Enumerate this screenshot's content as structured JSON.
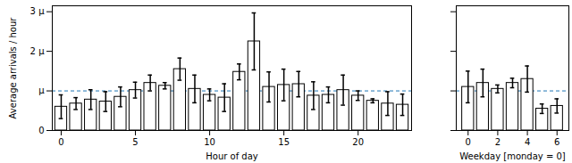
{
  "chart_data": [
    {
      "type": "bar",
      "x": [
        0,
        1,
        2,
        3,
        4,
        5,
        6,
        7,
        8,
        9,
        10,
        11,
        12,
        13,
        14,
        15,
        16,
        17,
        18,
        19,
        20,
        21,
        22,
        23
      ],
      "values": [
        0.6,
        0.68,
        0.78,
        0.73,
        0.85,
        1.02,
        1.2,
        1.13,
        1.55,
        1.05,
        0.9,
        0.83,
        1.48,
        2.25,
        1.1,
        1.15,
        1.17,
        0.88,
        0.9,
        1.02,
        0.88,
        0.75,
        0.68,
        0.65
      ],
      "errors": [
        0.3,
        0.15,
        0.25,
        0.25,
        0.25,
        0.2,
        0.2,
        0.08,
        0.28,
        0.35,
        0.15,
        0.35,
        0.2,
        0.72,
        0.38,
        0.4,
        0.32,
        0.35,
        0.2,
        0.38,
        0.12,
        0.05,
        0.3,
        0.27
      ],
      "color": "#ffffff",
      "x_label": "Hour of day",
      "y_label": "Average arrivals / hour",
      "xlim": [
        -0.6,
        23.6
      ],
      "xticks": [
        0,
        5,
        10,
        15,
        20
      ],
      "ylim": [
        0,
        3.15
      ],
      "yticks": [
        0,
        {
          "value": 1,
          "label": "μ"
        },
        {
          "value": 2,
          "label": "2 μ"
        },
        {
          "value": 3,
          "label": "3 μ"
        }
      ],
      "reference_line": {
        "value": 1,
        "line_style": "dashed",
        "color": "#1f77b4"
      }
    },
    {
      "type": "bar",
      "x": [
        0,
        1,
        2,
        3,
        4,
        5,
        6
      ],
      "values": [
        1.1,
        1.2,
        1.05,
        1.2,
        1.3,
        0.55,
        0.62
      ],
      "errors": [
        0.4,
        0.35,
        0.1,
        0.12,
        0.33,
        0.12,
        0.18
      ],
      "color": "#ffffff",
      "x_label": "Weekday [monday = 0]",
      "xlim": [
        -0.8,
        6.8
      ],
      "xticks": [
        0,
        2,
        4,
        6
      ],
      "ylim": [
        0,
        3.15
      ],
      "yticks": [
        0,
        1,
        2,
        3
      ],
      "tick_labels": "x",
      "reference_line": {
        "value": 1,
        "line_style": "dashed",
        "color": "#1f77b4"
      }
    }
  ]
}
